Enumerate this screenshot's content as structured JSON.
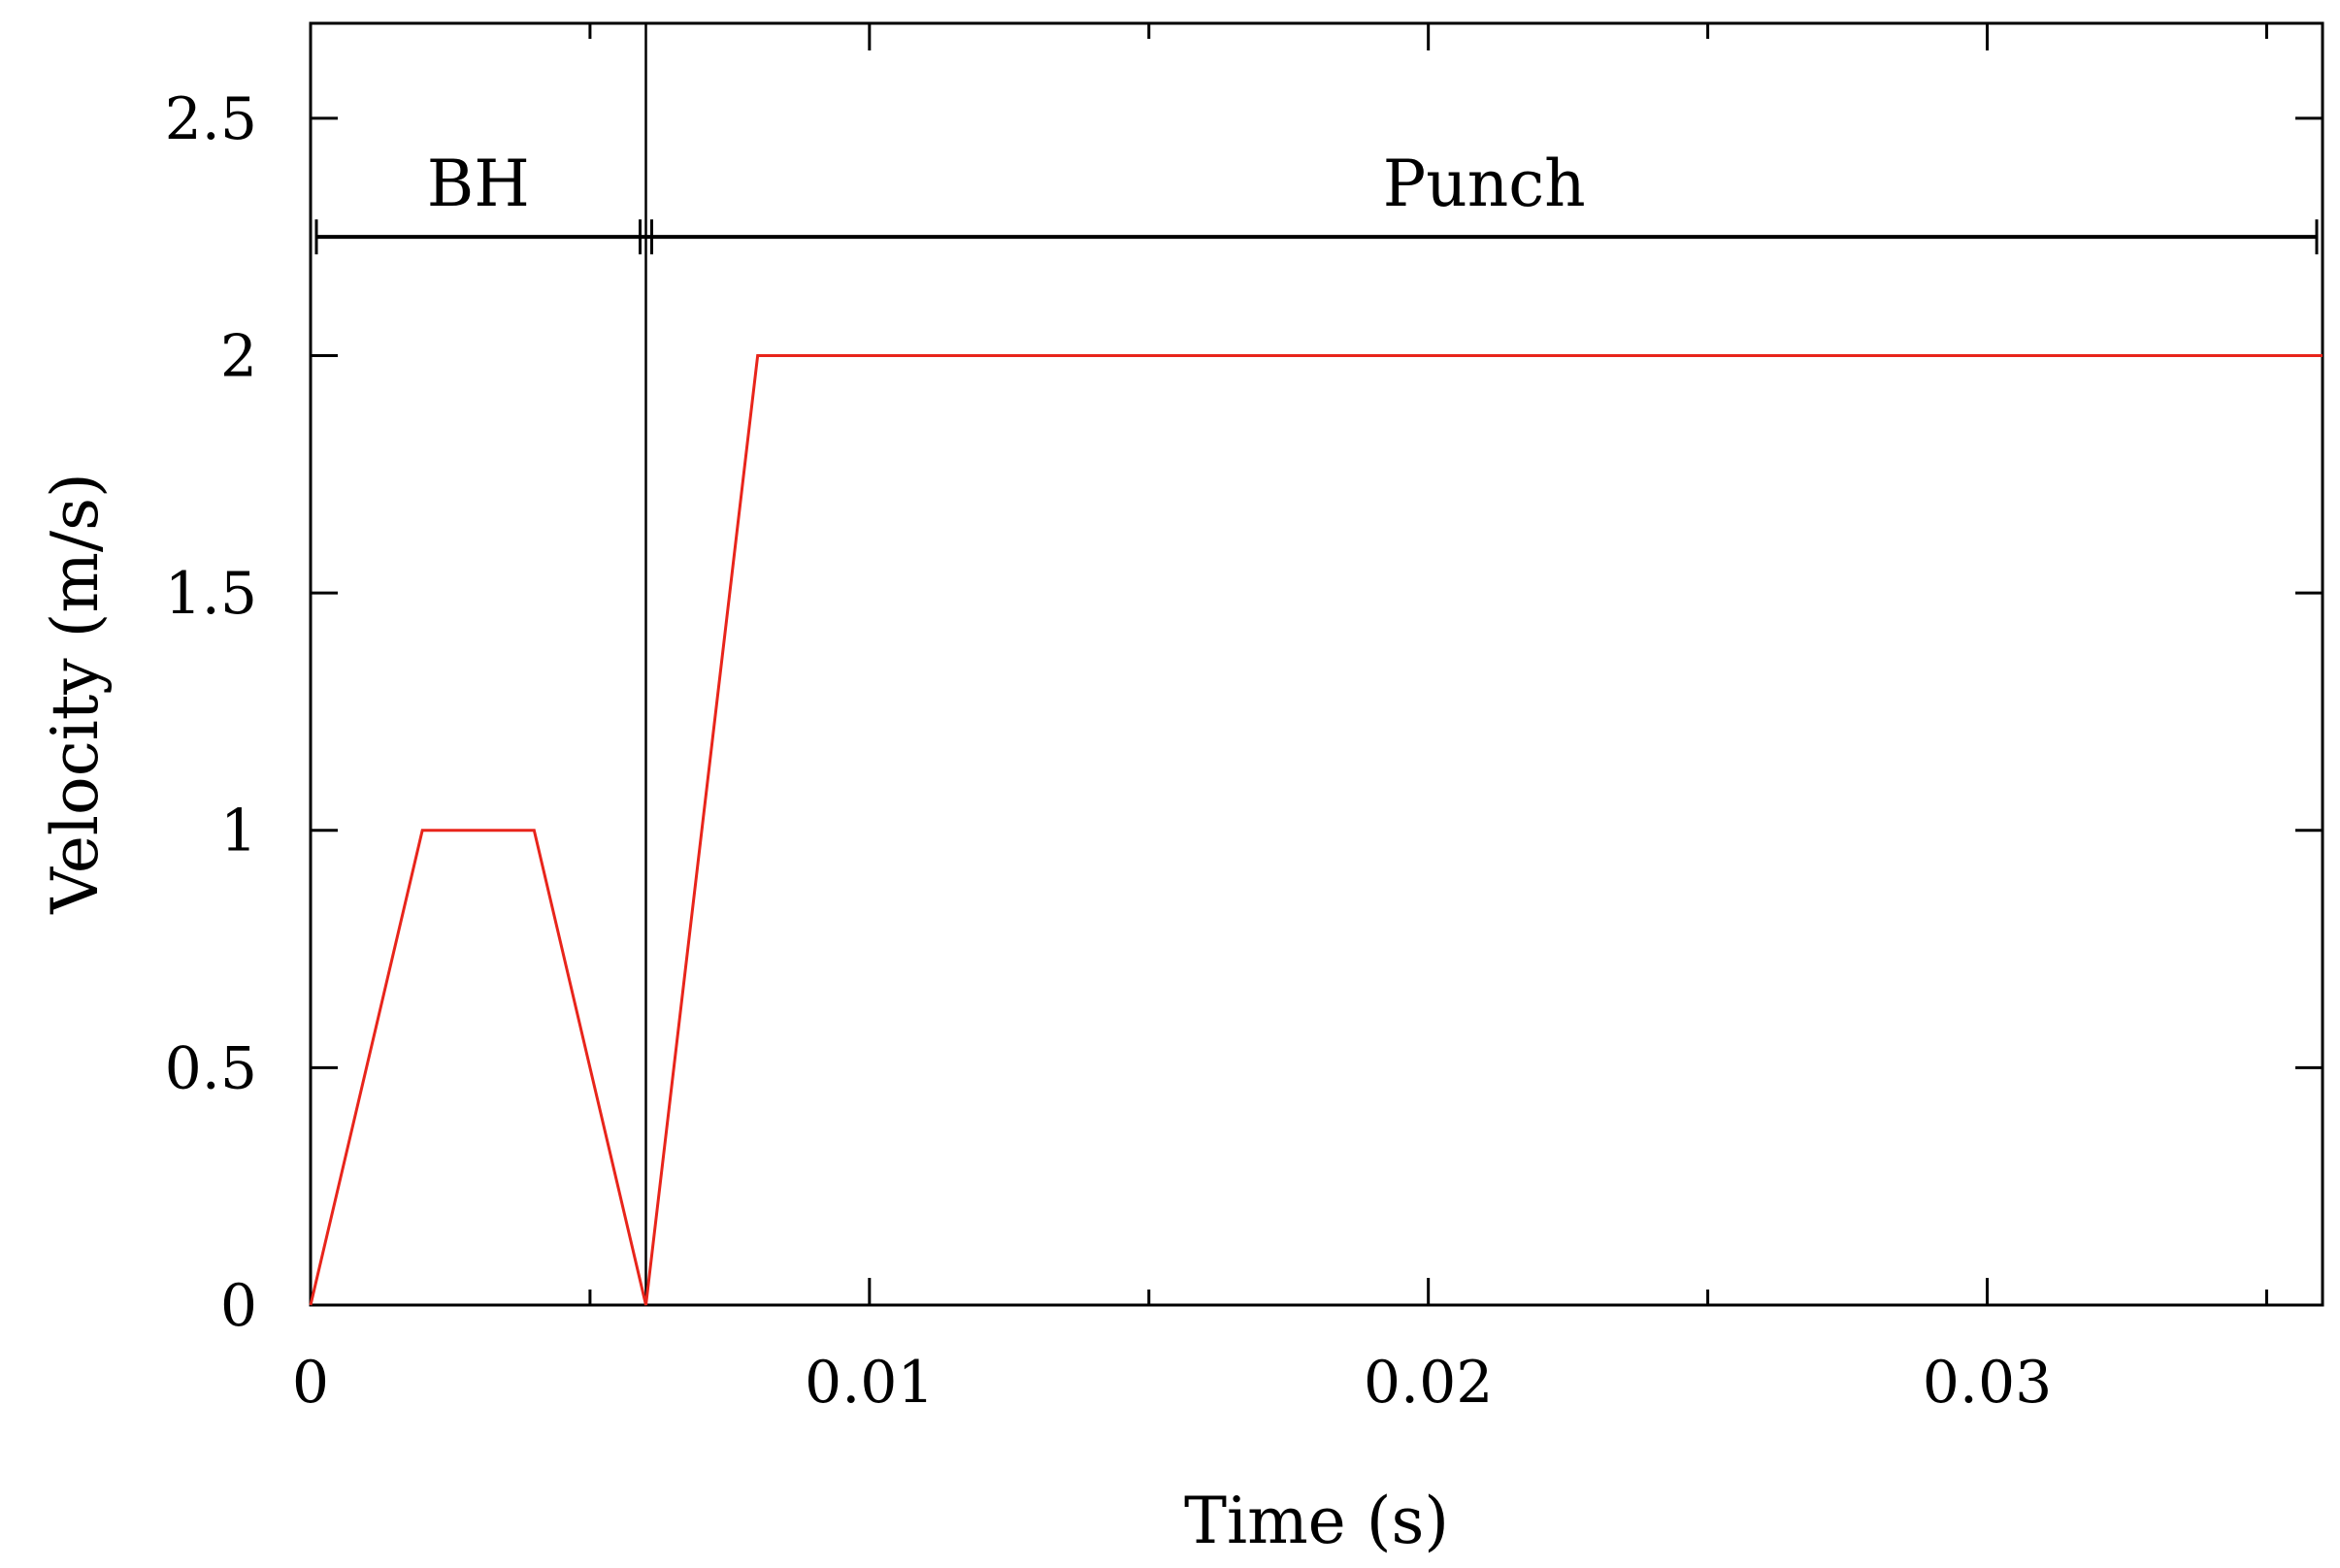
{
  "chart_data": {
    "type": "line",
    "xlabel": "Time (s)",
    "ylabel": "Velocity (m/s)",
    "xlim": [
      0,
      0.036
    ],
    "ylim": [
      0,
      2.7
    ],
    "x_ticks": [
      0,
      0.01,
      0.02,
      0.03
    ],
    "x_tick_labels": [
      "0",
      "0.01",
      "0.02",
      "0.03"
    ],
    "x_minor_ticks": [
      0.005,
      0.015,
      0.025,
      0.035
    ],
    "y_ticks": [
      0,
      0.5,
      1,
      1.5,
      2,
      2.5
    ],
    "y_tick_labels": [
      "0",
      "0.5",
      "1",
      "1.5",
      "2",
      "2.5"
    ],
    "grid": false,
    "series": [
      {
        "color": "#e8251b",
        "x": [
          0,
          0.002,
          0.004,
          0.006,
          0.008,
          0.036
        ],
        "y": [
          0,
          1,
          1,
          0,
          2,
          2
        ]
      }
    ],
    "annotations": {
      "phase_divider_x": 0.006,
      "phase_bar_y": 2.25,
      "phases": [
        {
          "label": "BH",
          "start": 0,
          "end": 0.006
        },
        {
          "label": "Punch",
          "start": 0.006,
          "end": 0.036
        }
      ]
    }
  }
}
